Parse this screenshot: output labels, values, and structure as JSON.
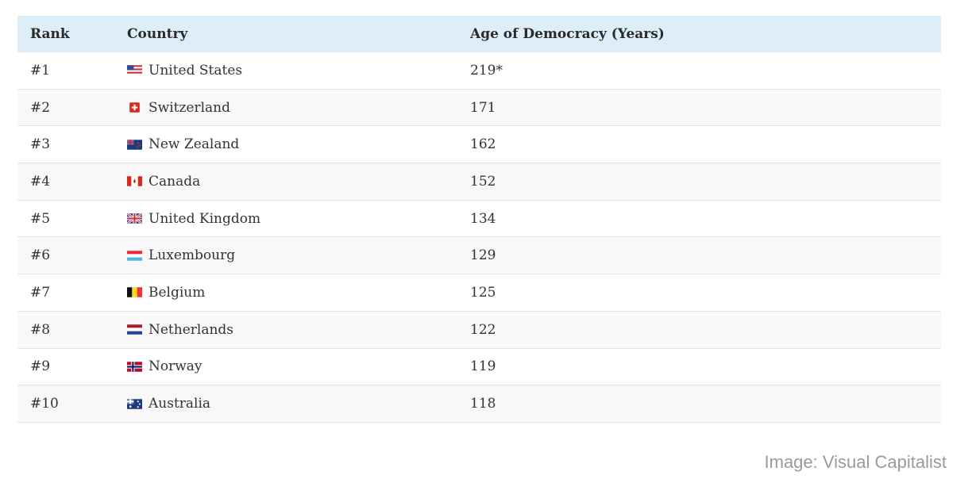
{
  "table": {
    "header": [
      "Rank",
      "Country",
      "Age of Democracy (Years)"
    ],
    "rows": [
      [
        "#1",
        "United States",
        "219*"
      ],
      [
        "#2",
        "Switzerland",
        171
      ],
      [
        "#3",
        "New Zealand",
        162
      ],
      [
        "#4",
        "Canada",
        152
      ],
      [
        "#5",
        "United Kingdom",
        134
      ],
      [
        "#6",
        "Luxembourg",
        129
      ],
      [
        "#7",
        "Belgium",
        125
      ],
      [
        "#8",
        "Netherlands",
        122
      ],
      [
        "#9",
        "Norway",
        119
      ],
      [
        "#10",
        "Australia",
        118
      ]
    ]
  },
  "caption": "Image: Visual Capitalist"
}
